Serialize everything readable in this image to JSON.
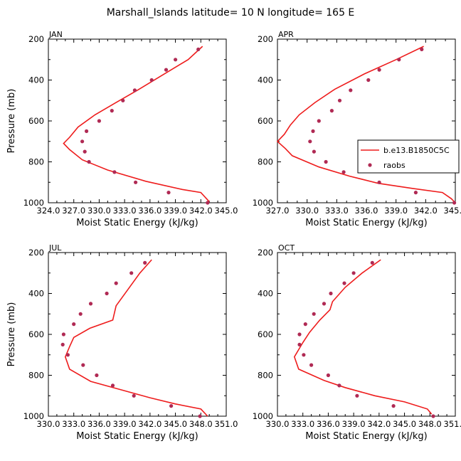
{
  "figure": {
    "title": "Marshall_Islands  latitude= 10 N longitude= 165 E",
    "colors": {
      "model": "#ee1c1c",
      "obs": "#b02a54"
    }
  },
  "chart_data": [
    {
      "type": "line",
      "panel": "JAN",
      "xlabel": "Moist Static Energy (kJ/kg)",
      "ylabel": "Pressure (mb)",
      "xlim": [
        324.0,
        345.0
      ],
      "ylim": [
        1000,
        200
      ],
      "x_ticks": [
        "324.0",
        "327.0",
        "330.0",
        "333.0",
        "336.0",
        "339.0",
        "342.0",
        "345.0"
      ],
      "y_ticks": [
        "200",
        "400",
        "600",
        "800",
        "1000"
      ],
      "series": [
        {
          "kind": "line",
          "points": [
            [
              342.2,
              235
            ],
            [
              340.5,
              300
            ],
            [
              337.5,
              375
            ],
            [
              334.5,
              450
            ],
            [
              332.0,
              510
            ],
            [
              329.5,
              570
            ],
            [
              327.5,
              630
            ],
            [
              326.5,
              680
            ],
            [
              325.8,
              710
            ],
            [
              326.5,
              740
            ],
            [
              328.0,
              790
            ],
            [
              331.0,
              840
            ],
            [
              335.5,
              895
            ],
            [
              339.8,
              935
            ],
            [
              342.0,
              950
            ],
            [
              343.0,
              995
            ]
          ]
        },
        {
          "kind": "scatter",
          "points": [
            [
              341.7,
              250
            ],
            [
              339.0,
              300
            ],
            [
              337.9,
              350
            ],
            [
              336.2,
              400
            ],
            [
              334.2,
              450
            ],
            [
              332.8,
              500
            ],
            [
              331.5,
              550
            ],
            [
              330.0,
              600
            ],
            [
              328.5,
              650
            ],
            [
              328.0,
              700
            ],
            [
              328.3,
              750
            ],
            [
              328.8,
              800
            ],
            [
              331.8,
              850
            ],
            [
              334.3,
              900
            ],
            [
              338.2,
              950
            ],
            [
              342.8,
              1000
            ]
          ]
        }
      ]
    },
    {
      "type": "line",
      "panel": "APR",
      "xlabel": "Moist Static Energy (kJ/kg)",
      "ylabel": "",
      "xlim": [
        327.0,
        345.0
      ],
      "ylim": [
        1000,
        200
      ],
      "x_ticks": [
        "327.0",
        "330.0",
        "333.0",
        "336.0",
        "339.0",
        "342.0",
        "345.0"
      ],
      "y_ticks": [
        "200",
        "400",
        "600",
        "800",
        "1000"
      ],
      "series": [
        {
          "kind": "line",
          "name": "b.e13.B1850C5C",
          "points": [
            [
              341.8,
              235
            ],
            [
              339.0,
              300
            ],
            [
              335.8,
              370
            ],
            [
              332.8,
              445
            ],
            [
              330.8,
              510
            ],
            [
              329.2,
              570
            ],
            [
              328.3,
              620
            ],
            [
              327.7,
              665
            ],
            [
              327.0,
              700
            ],
            [
              327.8,
              735
            ],
            [
              328.5,
              770
            ],
            [
              331.2,
              825
            ],
            [
              334.3,
              870
            ],
            [
              337.2,
              905
            ],
            [
              340.7,
              930
            ],
            [
              343.7,
              950
            ],
            [
              344.6,
              980
            ],
            [
              345.0,
              1000
            ]
          ]
        },
        {
          "kind": "scatter",
          "name": "raobs",
          "points": [
            [
              341.6,
              250
            ],
            [
              339.3,
              300
            ],
            [
              337.3,
              350
            ],
            [
              336.2,
              400
            ],
            [
              334.4,
              450
            ],
            [
              333.3,
              500
            ],
            [
              332.5,
              550
            ],
            [
              331.2,
              600
            ],
            [
              330.6,
              650
            ],
            [
              330.3,
              700
            ],
            [
              330.7,
              750
            ],
            [
              331.9,
              800
            ],
            [
              333.7,
              850
            ],
            [
              337.3,
              900
            ],
            [
              341.0,
              950
            ],
            [
              344.9,
              1000
            ]
          ]
        }
      ]
    },
    {
      "type": "line",
      "panel": "JUL",
      "xlabel": "Moist Static Energy (kJ/kg)",
      "ylabel": "Pressure (mb)",
      "xlim": [
        330.0,
        351.0
      ],
      "ylim": [
        1000,
        200
      ],
      "x_ticks": [
        "330.0",
        "333.0",
        "336.0",
        "339.0",
        "342.0",
        "345.0",
        "348.0",
        "351.0"
      ],
      "y_ticks": [
        "200",
        "400",
        "600",
        "800",
        "1000"
      ],
      "series": [
        {
          "kind": "line",
          "points": [
            [
              342.2,
              235
            ],
            [
              340.8,
              300
            ],
            [
              339.4,
              380
            ],
            [
              338.0,
              460
            ],
            [
              337.6,
              530
            ],
            [
              334.9,
              570
            ],
            [
              333.0,
              615
            ],
            [
              332.5,
              660
            ],
            [
              332.0,
              710
            ],
            [
              332.5,
              770
            ],
            [
              335.0,
              830
            ],
            [
              338.5,
              870
            ],
            [
              342.0,
              910
            ],
            [
              345.0,
              940
            ],
            [
              348.0,
              965
            ],
            [
              348.8,
              1000
            ]
          ]
        },
        {
          "kind": "scatter",
          "points": [
            [
              341.4,
              250
            ],
            [
              339.8,
              300
            ],
            [
              338.0,
              350
            ],
            [
              336.9,
              400
            ],
            [
              335.0,
              450
            ],
            [
              333.8,
              500
            ],
            [
              333.0,
              550
            ],
            [
              331.8,
              600
            ],
            [
              331.7,
              650
            ],
            [
              332.3,
              700
            ],
            [
              334.1,
              750
            ],
            [
              335.7,
              800
            ],
            [
              337.6,
              850
            ],
            [
              340.1,
              900
            ],
            [
              344.5,
              950
            ],
            [
              347.9,
              1000
            ]
          ]
        }
      ]
    },
    {
      "type": "line",
      "panel": "OCT",
      "xlabel": "Moist Static Energy (kJ/kg)",
      "ylabel": "",
      "xlim": [
        330.0,
        351.0
      ],
      "ylim": [
        1000,
        200
      ],
      "x_ticks": [
        "330.0",
        "333.0",
        "336.0",
        "339.0",
        "342.0",
        "345.0",
        "348.0",
        "351.0"
      ],
      "y_ticks": [
        "200",
        "400",
        "600",
        "800",
        "1000"
      ],
      "series": [
        {
          "kind": "line",
          "points": [
            [
              342.2,
              235
            ],
            [
              340.0,
              300
            ],
            [
              338.0,
              370
            ],
            [
              336.5,
              440
            ],
            [
              336.2,
              480
            ],
            [
              335.0,
              530
            ],
            [
              333.8,
              590
            ],
            [
              333.0,
              640
            ],
            [
              332.0,
              710
            ],
            [
              332.5,
              770
            ],
            [
              335.5,
              825
            ],
            [
              338.0,
              860
            ],
            [
              341.5,
              900
            ],
            [
              345.0,
              930
            ],
            [
              347.7,
              965
            ],
            [
              348.2,
              990
            ]
          ]
        },
        {
          "kind": "scatter",
          "points": [
            [
              341.2,
              250
            ],
            [
              339.0,
              300
            ],
            [
              337.9,
              350
            ],
            [
              336.3,
              400
            ],
            [
              335.5,
              450
            ],
            [
              334.3,
              500
            ],
            [
              333.3,
              550
            ],
            [
              332.6,
              600
            ],
            [
              332.6,
              650
            ],
            [
              333.1,
              700
            ],
            [
              334.0,
              750
            ],
            [
              336.0,
              800
            ],
            [
              337.3,
              850
            ],
            [
              339.4,
              900
            ],
            [
              343.7,
              950
            ],
            [
              348.4,
              1000
            ]
          ]
        }
      ]
    }
  ]
}
